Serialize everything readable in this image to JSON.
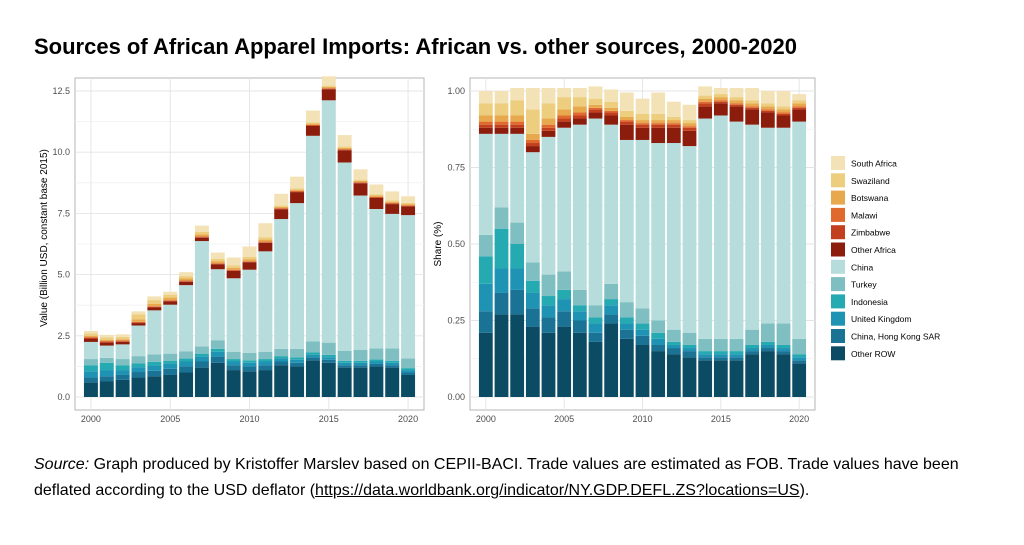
{
  "title": "Sources of African Apparel Imports: African vs. other sources, 2000-2020",
  "source": {
    "label": "Source:",
    "text": " Graph produced by Kristoffer Marslev based on CEPII-BACI. Trade values are estimated as FOB. Trade values have been deflated according to the USD deflator (",
    "link": "https://data.worldbank.org/indicator/NY.GDP.DEFL.ZS?locations=US",
    "tail": ")."
  },
  "colors": {
    "South Africa": "#f3e2b6",
    "Swaziland": "#ecce7e",
    "Botswana": "#e8a94e",
    "Malawi": "#e06a2e",
    "Zimbabwe": "#c2401e",
    "Other Africa": "#8c1d0c",
    "China": "#b6dcdc",
    "Turkey": "#7fbfc2",
    "Indonesia": "#26aab2",
    "United Kingdom": "#1f93b4",
    "China, Hong Kong SAR": "#1a7295",
    "Other ROW": "#0b4c64"
  },
  "chart_data": [
    {
      "type": "bar",
      "stacked": true,
      "title": "",
      "xlabel": "",
      "ylabel": "Value (Billion USD, constant base 2015)",
      "ylim": [
        0,
        12.5
      ],
      "yticks": [
        "0.0",
        "2.5",
        "5.0",
        "7.5",
        "10.0",
        "12.5"
      ],
      "xticks": [
        "2000",
        "2005",
        "2010",
        "2015",
        "2020"
      ],
      "grid": true,
      "categories": [
        "2000",
        "2001",
        "2002",
        "2003",
        "2004",
        "2005",
        "2006",
        "2007",
        "2008",
        "2009",
        "2010",
        "2011",
        "2012",
        "2013",
        "2014",
        "2015",
        "2016",
        "2017",
        "2018",
        "2019",
        "2020"
      ],
      "series": [
        {
          "name": "Other ROW",
          "values": [
            0.6,
            0.65,
            0.7,
            0.8,
            0.85,
            0.9,
            1.0,
            1.2,
            1.4,
            1.1,
            1.05,
            1.1,
            1.3,
            1.25,
            1.5,
            1.4,
            1.2,
            1.2,
            1.25,
            1.2,
            0.9
          ]
        },
        {
          "name": "China, Hong Kong SAR",
          "values": [
            0.2,
            0.2,
            0.2,
            0.22,
            0.22,
            0.25,
            0.25,
            0.25,
            0.25,
            0.2,
            0.2,
            0.2,
            0.15,
            0.15,
            0.12,
            0.12,
            0.1,
            0.1,
            0.1,
            0.1,
            0.1
          ]
        },
        {
          "name": "United Kingdom",
          "values": [
            0.25,
            0.25,
            0.2,
            0.2,
            0.22,
            0.2,
            0.2,
            0.2,
            0.2,
            0.15,
            0.15,
            0.15,
            0.12,
            0.12,
            0.1,
            0.1,
            0.1,
            0.1,
            0.1,
            0.1,
            0.1
          ]
        },
        {
          "name": "Indonesia",
          "values": [
            0.25,
            0.3,
            0.2,
            0.15,
            0.15,
            0.12,
            0.12,
            0.12,
            0.12,
            0.1,
            0.1,
            0.1,
            0.1,
            0.1,
            0.1,
            0.1,
            0.08,
            0.08,
            0.08,
            0.08,
            0.08
          ]
        },
        {
          "name": "Turkey",
          "values": [
            0.25,
            0.2,
            0.25,
            0.3,
            0.3,
            0.3,
            0.3,
            0.3,
            0.35,
            0.3,
            0.3,
            0.3,
            0.3,
            0.35,
            0.45,
            0.5,
            0.4,
            0.45,
            0.45,
            0.5,
            0.4
          ]
        },
        {
          "name": "China",
          "values": [
            0.7,
            0.5,
            0.6,
            1.25,
            1.8,
            2.0,
            2.7,
            4.3,
            2.9,
            3.0,
            3.4,
            4.1,
            5.3,
            5.95,
            8.4,
            9.9,
            7.7,
            6.3,
            5.7,
            5.5,
            5.85
          ]
        },
        {
          "name": "Other Africa",
          "values": [
            0.12,
            0.12,
            0.1,
            0.1,
            0.12,
            0.14,
            0.14,
            0.14,
            0.2,
            0.3,
            0.3,
            0.35,
            0.4,
            0.45,
            0.4,
            0.45,
            0.5,
            0.5,
            0.45,
            0.4,
            0.35
          ]
        },
        {
          "name": "Zimbabwe",
          "values": [
            0.05,
            0.04,
            0.03,
            0.02,
            0.02,
            0.02,
            0.02,
            0.02,
            0.02,
            0.02,
            0.02,
            0.02,
            0.02,
            0.02,
            0.02,
            0.02,
            0.02,
            0.02,
            0.02,
            0.02,
            0.02
          ]
        },
        {
          "name": "Malawi",
          "values": [
            0.03,
            0.03,
            0.03,
            0.03,
            0.03,
            0.03,
            0.03,
            0.03,
            0.03,
            0.03,
            0.03,
            0.03,
            0.03,
            0.03,
            0.03,
            0.03,
            0.03,
            0.03,
            0.03,
            0.03,
            0.03
          ]
        },
        {
          "name": "Botswana",
          "values": [
            0.05,
            0.05,
            0.05,
            0.1,
            0.1,
            0.1,
            0.08,
            0.08,
            0.08,
            0.08,
            0.08,
            0.08,
            0.05,
            0.05,
            0.05,
            0.05,
            0.05,
            0.05,
            0.05,
            0.05,
            0.05
          ]
        },
        {
          "name": "Swaziland",
          "values": [
            0.1,
            0.1,
            0.1,
            0.2,
            0.15,
            0.12,
            0.1,
            0.1,
            0.1,
            0.1,
            0.1,
            0.1,
            0.05,
            0.05,
            0.05,
            0.05,
            0.05,
            0.05,
            0.05,
            0.05,
            0.05
          ]
        },
        {
          "name": "South Africa",
          "values": [
            0.1,
            0.1,
            0.1,
            0.13,
            0.15,
            0.12,
            0.16,
            0.26,
            0.25,
            0.32,
            0.42,
            0.57,
            0.48,
            0.48,
            0.48,
            0.38,
            0.47,
            0.42,
            0.4,
            0.37,
            0.27
          ]
        }
      ]
    },
    {
      "type": "bar",
      "stacked": true,
      "title": "",
      "xlabel": "",
      "ylabel": "Share (%)",
      "ylim": [
        0,
        1
      ],
      "yticks": [
        "0.00",
        "0.25",
        "0.50",
        "0.75",
        "1.00"
      ],
      "xticks": [
        "2000",
        "2005",
        "2010",
        "2015",
        "2020"
      ],
      "grid": true,
      "legend": "right",
      "categories": [
        "2000",
        "2001",
        "2002",
        "2003",
        "2004",
        "2005",
        "2006",
        "2007",
        "2008",
        "2009",
        "2010",
        "2011",
        "2012",
        "2013",
        "2014",
        "2015",
        "2016",
        "2017",
        "2018",
        "2019",
        "2020"
      ],
      "series": [
        {
          "name": "Other ROW",
          "values": [
            0.21,
            0.27,
            0.27,
            0.23,
            0.21,
            0.23,
            0.21,
            0.18,
            0.24,
            0.19,
            0.17,
            0.15,
            0.14,
            0.13,
            0.12,
            0.12,
            0.12,
            0.14,
            0.15,
            0.14,
            0.11
          ]
        },
        {
          "name": "China, Hong Kong SAR",
          "values": [
            0.07,
            0.07,
            0.08,
            0.06,
            0.05,
            0.05,
            0.04,
            0.03,
            0.03,
            0.03,
            0.03,
            0.02,
            0.02,
            0.02,
            0.01,
            0.01,
            0.01,
            0.01,
            0.01,
            0.01,
            0.01
          ]
        },
        {
          "name": "United Kingdom",
          "values": [
            0.09,
            0.08,
            0.07,
            0.05,
            0.04,
            0.04,
            0.03,
            0.03,
            0.03,
            0.02,
            0.02,
            0.02,
            0.01,
            0.01,
            0.01,
            0.01,
            0.01,
            0.01,
            0.01,
            0.01,
            0.01
          ]
        },
        {
          "name": "Indonesia",
          "values": [
            0.09,
            0.13,
            0.08,
            0.04,
            0.03,
            0.03,
            0.02,
            0.02,
            0.02,
            0.02,
            0.02,
            0.02,
            0.01,
            0.01,
            0.01,
            0.01,
            0.01,
            0.01,
            0.01,
            0.01,
            0.01
          ]
        },
        {
          "name": "Turkey",
          "values": [
            0.07,
            0.07,
            0.07,
            0.06,
            0.07,
            0.06,
            0.05,
            0.04,
            0.05,
            0.05,
            0.05,
            0.04,
            0.04,
            0.04,
            0.04,
            0.04,
            0.04,
            0.05,
            0.06,
            0.07,
            0.05
          ]
        },
        {
          "name": "China",
          "values": [
            0.33,
            0.24,
            0.29,
            0.36,
            0.45,
            0.47,
            0.54,
            0.61,
            0.52,
            0.53,
            0.55,
            0.58,
            0.61,
            0.61,
            0.72,
            0.73,
            0.71,
            0.67,
            0.64,
            0.64,
            0.71
          ]
        },
        {
          "name": "Other Africa",
          "values": [
            0.02,
            0.02,
            0.02,
            0.02,
            0.02,
            0.02,
            0.02,
            0.02,
            0.03,
            0.05,
            0.04,
            0.05,
            0.05,
            0.05,
            0.04,
            0.04,
            0.05,
            0.05,
            0.05,
            0.04,
            0.04
          ]
        },
        {
          "name": "Zimbabwe",
          "values": [
            0.01,
            0.01,
            0.01,
            0.01,
            0.01,
            0.01,
            0.01,
            0.01,
            0.01,
            0.01,
            0.01,
            0.01,
            0.01,
            0.01,
            0.01,
            0.005,
            0.005,
            0.005,
            0.005,
            0.005,
            0.005
          ]
        },
        {
          "name": "Malawi",
          "values": [
            0.01,
            0.01,
            0.01,
            0.01,
            0.01,
            0.01,
            0.01,
            0.005,
            0.005,
            0.005,
            0.005,
            0.005,
            0.005,
            0.005,
            0.005,
            0.005,
            0.005,
            0.005,
            0.005,
            0.005,
            0.005
          ]
        },
        {
          "name": "Botswana",
          "values": [
            0.02,
            0.02,
            0.02,
            0.02,
            0.02,
            0.02,
            0.02,
            0.01,
            0.01,
            0.01,
            0.01,
            0.01,
            0.01,
            0.01,
            0.01,
            0.01,
            0.01,
            0.01,
            0.01,
            0.01,
            0.01
          ]
        },
        {
          "name": "Swaziland",
          "values": [
            0.04,
            0.04,
            0.05,
            0.08,
            0.05,
            0.04,
            0.03,
            0.02,
            0.02,
            0.02,
            0.02,
            0.02,
            0.01,
            0.01,
            0.01,
            0.01,
            0.01,
            0.01,
            0.01,
            0.01,
            0.01
          ]
        },
        {
          "name": "South Africa",
          "values": [
            0.04,
            0.04,
            0.04,
            0.07,
            0.05,
            0.03,
            0.03,
            0.04,
            0.04,
            0.06,
            0.05,
            0.07,
            0.05,
            0.05,
            0.03,
            0.02,
            0.03,
            0.04,
            0.04,
            0.05,
            0.02
          ]
        }
      ]
    }
  ]
}
